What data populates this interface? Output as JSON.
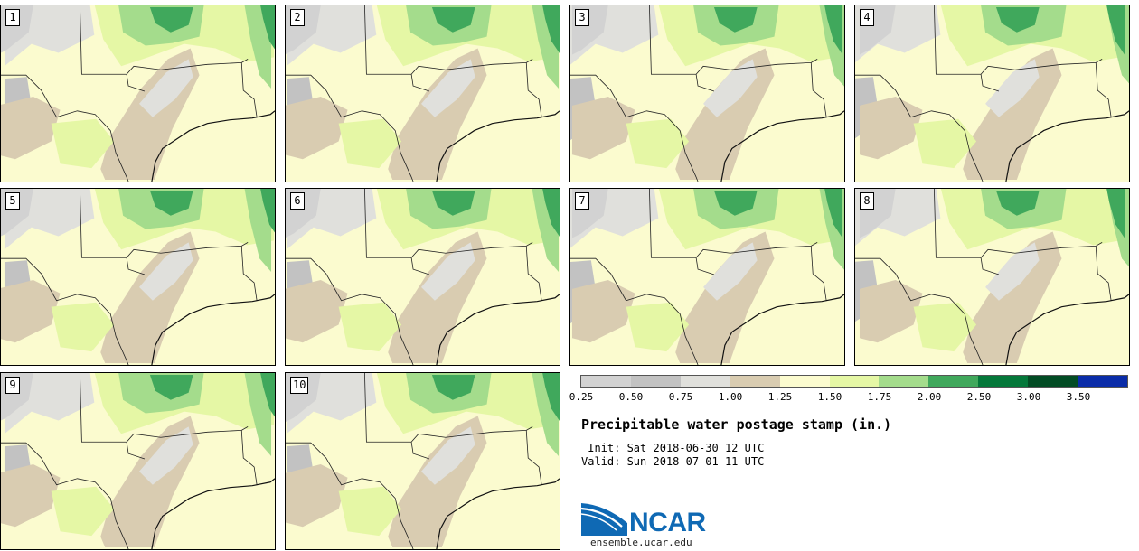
{
  "panels": [
    {
      "label": "1"
    },
    {
      "label": "2"
    },
    {
      "label": "3"
    },
    {
      "label": "4"
    },
    {
      "label": "5"
    },
    {
      "label": "6"
    },
    {
      "label": "7"
    },
    {
      "label": "8"
    },
    {
      "label": "9"
    },
    {
      "label": "10"
    }
  ],
  "colorbar": {
    "colors": [
      "#d2d2d2",
      "#c2c2c2",
      "#e0e0dc",
      "#d9ccb1",
      "#fbfbcf",
      "#e5f7a5",
      "#a4dc8c",
      "#40a85c",
      "#04783a",
      "#024c24",
      "#0a2ca8"
    ],
    "ticks": [
      "0.25",
      "0.50",
      "0.75",
      "1.00",
      "1.25",
      "1.50",
      "1.75",
      "2.00",
      "2.50",
      "3.00",
      "3.50"
    ]
  },
  "title": "Precipitable water postage stamp (in.)",
  "init_line": " Init: Sat 2018-06-30 12 UTC",
  "valid_line": "Valid: Sun 2018-07-01 11 UTC",
  "logo": {
    "text": "NCAR",
    "site": "ensemble.ucar.edu",
    "color": "#0f69b4"
  }
}
